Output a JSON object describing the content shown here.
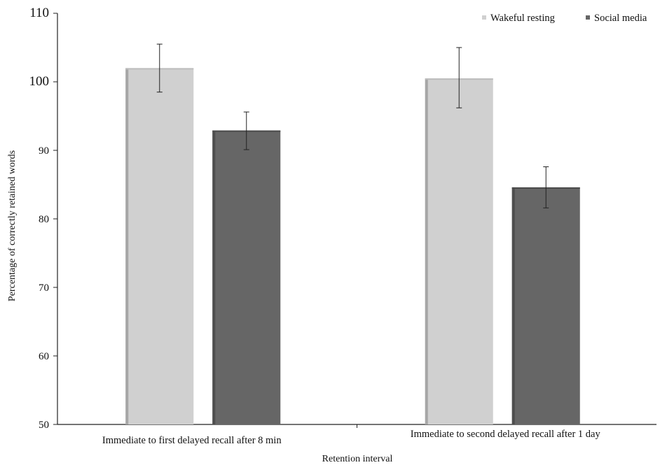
{
  "chart_data": {
    "type": "bar",
    "title": "",
    "xlabel": "Retention interval",
    "ylabel": "Percentage of correctly retained words",
    "ylim": [
      50,
      110
    ],
    "yticks": [
      50,
      60,
      70,
      80,
      90,
      100,
      110
    ],
    "categories": [
      "Immediate to first delayed recall after 8 min",
      "Immediate to second delayed recall after 1 day"
    ],
    "series": [
      {
        "name": "Wakeful resting",
        "color": "#d0d0d0",
        "values": [
          102.0,
          100.5
        ],
        "error_low": [
          98.5,
          96.2
        ],
        "error_high": [
          105.5,
          105.0
        ]
      },
      {
        "name": "Social media",
        "color": "#666666",
        "values": [
          92.9,
          84.6
        ],
        "error_low": [
          90.1,
          81.6
        ],
        "error_high": [
          95.6,
          87.6
        ]
      }
    ],
    "legend_position": "top-right",
    "grid": false
  }
}
